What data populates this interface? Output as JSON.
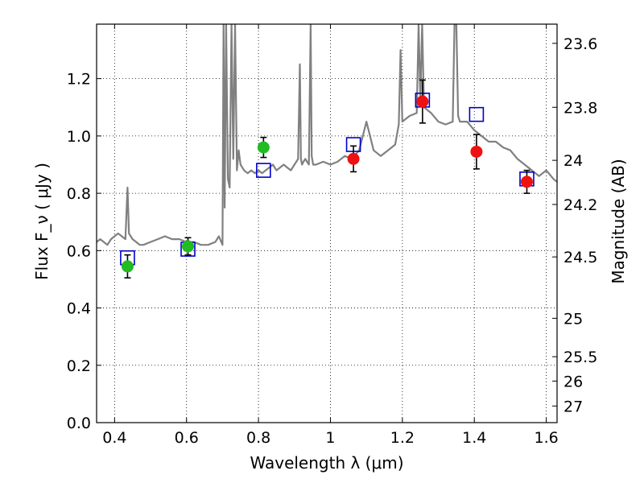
{
  "chart_data": {
    "type": "scatter",
    "xlabel": "Wavelength  λ (μm)",
    "ylabel": "Flux  F_ν  ( μJy )",
    "ylabel_right": "Magnitude (AB)",
    "xlim": [
      0.35,
      1.63
    ],
    "ylim": [
      0.0,
      1.39
    ],
    "grid": true,
    "xticks": [
      0.4,
      0.6,
      0.8,
      1.0,
      1.2,
      1.4,
      1.6
    ],
    "xtick_labels": [
      "0.4",
      "0.6",
      "0.8",
      "1",
      "1.2",
      "1.4",
      "1.6"
    ],
    "yticks": [
      0.0,
      0.2,
      0.4,
      0.6,
      0.8,
      1.0,
      1.2
    ],
    "ytick_labels": [
      "0.0",
      "0.2",
      "0.4",
      "0.6",
      "0.8",
      "1.0",
      "1.2"
    ],
    "right_ticks": [
      {
        "label": "23.6",
        "flux": 1.323
      },
      {
        "label": "23.8",
        "flux": 1.1
      },
      {
        "label": "24",
        "flux": 0.915
      },
      {
        "label": "24.2",
        "flux": 0.761
      },
      {
        "label": "24.5",
        "flux": 0.578
      },
      {
        "label": "25",
        "flux": 0.364
      },
      {
        "label": "25.5",
        "flux": 0.23
      },
      {
        "label": "26",
        "flux": 0.145
      },
      {
        "label": "27",
        "flux": 0.058
      }
    ],
    "series": [
      {
        "kind": "line",
        "color": "#808080",
        "x": [
          0.35,
          0.36,
          0.37,
          0.38,
          0.39,
          0.4,
          0.41,
          0.42,
          0.43,
          0.436,
          0.44,
          0.45,
          0.46,
          0.47,
          0.48,
          0.5,
          0.52,
          0.54,
          0.56,
          0.58,
          0.6,
          0.62,
          0.64,
          0.66,
          0.68,
          0.69,
          0.7,
          0.703,
          0.706,
          0.71,
          0.715,
          0.72,
          0.725,
          0.73,
          0.735,
          0.74,
          0.745,
          0.75,
          0.76,
          0.77,
          0.78,
          0.79,
          0.8,
          0.81,
          0.82,
          0.83,
          0.84,
          0.85,
          0.86,
          0.87,
          0.88,
          0.89,
          0.9,
          0.91,
          0.915,
          0.918,
          0.921,
          0.925,
          0.93,
          0.94,
          0.945,
          0.948,
          0.952,
          0.96,
          0.98,
          1.0,
          1.02,
          1.04,
          1.06,
          1.08,
          1.1,
          1.12,
          1.14,
          1.16,
          1.18,
          1.19,
          1.195,
          1.2,
          1.22,
          1.24,
          1.245,
          1.25,
          1.255,
          1.26,
          1.28,
          1.3,
          1.32,
          1.34,
          1.345,
          1.35,
          1.355,
          1.36,
          1.38,
          1.4,
          1.42,
          1.44,
          1.46,
          1.48,
          1.5,
          1.52,
          1.54,
          1.56,
          1.58,
          1.6,
          1.62,
          1.63
        ],
        "y": [
          0.63,
          0.64,
          0.63,
          0.62,
          0.64,
          0.65,
          0.66,
          0.65,
          0.64,
          0.82,
          0.66,
          0.64,
          0.63,
          0.62,
          0.62,
          0.63,
          0.64,
          0.65,
          0.64,
          0.64,
          0.63,
          0.63,
          0.62,
          0.62,
          0.63,
          0.65,
          0.62,
          1.39,
          0.75,
          1.39,
          0.85,
          0.82,
          1.39,
          0.92,
          1.39,
          0.88,
          0.95,
          0.9,
          0.88,
          0.87,
          0.88,
          0.87,
          0.88,
          0.87,
          0.88,
          0.89,
          0.9,
          0.88,
          0.89,
          0.9,
          0.89,
          0.88,
          0.9,
          0.92,
          1.25,
          0.92,
          0.9,
          0.91,
          0.92,
          0.9,
          1.39,
          0.93,
          0.9,
          0.9,
          0.91,
          0.9,
          0.91,
          0.93,
          0.92,
          0.95,
          1.05,
          0.95,
          0.93,
          0.95,
          0.97,
          1.04,
          1.3,
          1.05,
          1.07,
          1.08,
          1.39,
          1.12,
          1.39,
          1.1,
          1.08,
          1.05,
          1.04,
          1.05,
          1.39,
          1.39,
          1.07,
          1.05,
          1.05,
          1.02,
          1.0,
          0.98,
          0.98,
          0.96,
          0.95,
          0.92,
          0.9,
          0.88,
          0.86,
          0.88,
          0.85,
          0.84
        ]
      },
      {
        "kind": "open-square",
        "color": "#0000cc",
        "x": [
          0.436,
          0.604,
          0.814,
          1.064,
          1.256,
          1.406,
          1.546
        ],
        "y": [
          0.575,
          0.605,
          0.88,
          0.97,
          1.125,
          1.075,
          0.85
        ]
      },
      {
        "kind": "filled-circle",
        "color": "#22bb22",
        "x": [
          0.436,
          0.604,
          0.814
        ],
        "y": [
          0.545,
          0.615,
          0.96
        ],
        "yerr": [
          0.04,
          0.03,
          0.035
        ]
      },
      {
        "kind": "filled-circle",
        "color": "#ee1111",
        "x": [
          1.064,
          1.256,
          1.406,
          1.546
        ],
        "y": [
          0.92,
          1.12,
          0.945,
          0.84
        ],
        "yerr": [
          0.045,
          0.075,
          0.06,
          0.04
        ]
      }
    ]
  }
}
